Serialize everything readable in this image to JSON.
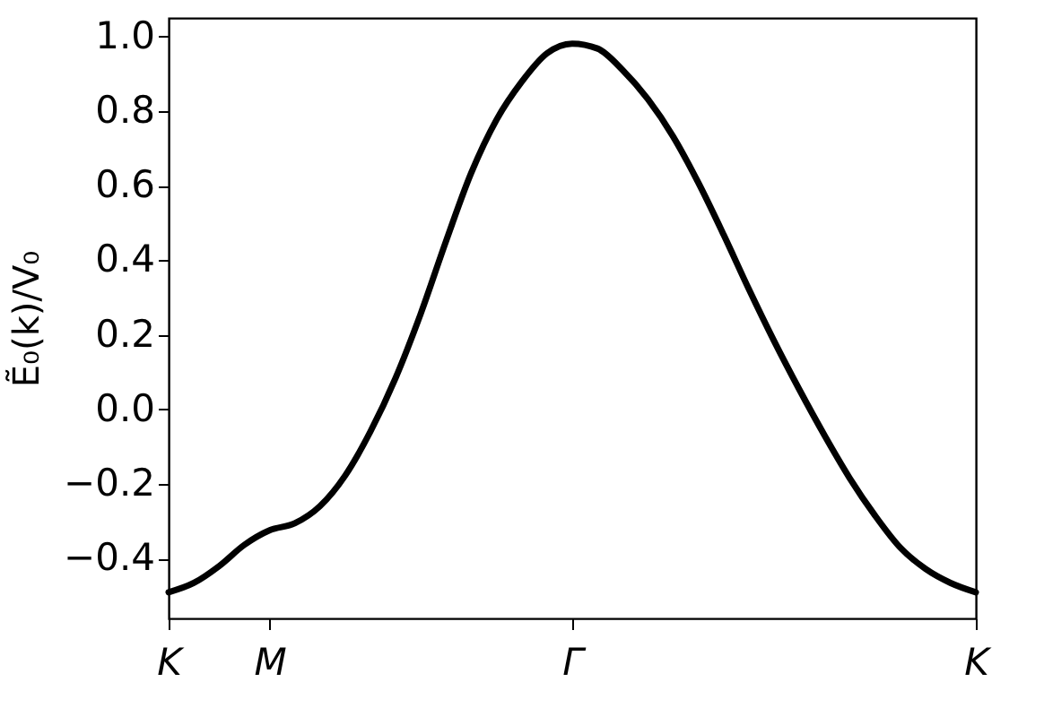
{
  "chart_data": {
    "type": "line",
    "ylabel": "Ẽ₀(k)/V₀",
    "categories": [
      "K",
      null,
      null,
      null,
      "M",
      null,
      null,
      null,
      null,
      null,
      null,
      null,
      null,
      null,
      null,
      null,
      "Γ",
      null,
      null,
      null,
      null,
      null,
      null,
      null,
      null,
      null,
      null,
      null,
      null,
      null,
      null,
      null,
      "K"
    ],
    "series": [
      {
        "color": "#000000",
        "line_style": "solid",
        "values": [
          -0.49,
          -0.465,
          -0.42,
          -0.363,
          -0.324,
          -0.305,
          -0.259,
          -0.177,
          -0.059,
          0.085,
          0.258,
          0.452,
          0.635,
          0.777,
          0.879,
          0.955,
          0.981,
          0.968,
          0.91,
          0.832,
          0.732,
          0.608,
          0.469,
          0.323,
          0.184,
          0.054,
          -0.069,
          -0.184,
          -0.284,
          -0.37,
          -0.427,
          -0.465,
          -0.49
        ]
      }
    ],
    "ylim": [
      -0.56,
      1.05
    ],
    "yticks": [
      {
        "value": -0.4,
        "label": "−0.4"
      },
      {
        "value": -0.2,
        "label": "−0.2"
      },
      {
        "value": 0,
        "label": "0.0"
      },
      0.2,
      0.4,
      0.6,
      0.8,
      {
        "value": 1,
        "label": "1.0"
      }
    ],
    "grid": false
  }
}
